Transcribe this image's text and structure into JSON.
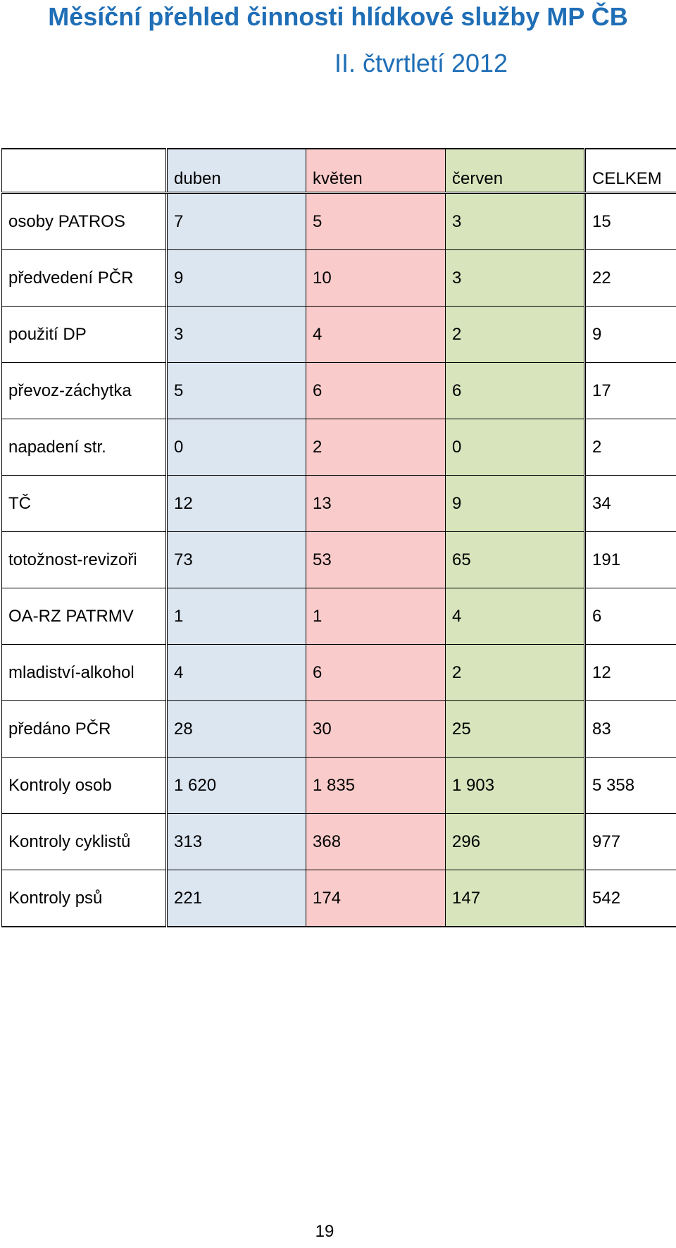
{
  "header": {
    "title_line1": "Měsíční přehled činnosti hlídkové služby MP ČB",
    "title_line2": "II. čtvrtletí 2012"
  },
  "table": {
    "columns": [
      "",
      "duben",
      "květen",
      "červen",
      "CELKEM"
    ],
    "colors": {
      "duben": "#dce6f1",
      "květen": "#f9cbca",
      "červen": "#d8e4bc"
    },
    "rows": [
      {
        "label": "osoby PATROS",
        "duben": "7",
        "kveten": "5",
        "cerven": "3",
        "celkem": "15"
      },
      {
        "label": "předvedení PČR",
        "duben": "9",
        "kveten": "10",
        "cerven": "3",
        "celkem": "22"
      },
      {
        "label": "použití DP",
        "duben": "3",
        "kveten": "4",
        "cerven": "2",
        "celkem": "9"
      },
      {
        "label": "převoz-záchytka",
        "duben": "5",
        "kveten": "6",
        "cerven": "6",
        "celkem": "17"
      },
      {
        "label": "napadení str.",
        "duben": "0",
        "kveten": "2",
        "cerven": "0",
        "celkem": "2"
      },
      {
        "label": "TČ",
        "duben": "12",
        "kveten": "13",
        "cerven": "9",
        "celkem": "34"
      },
      {
        "label": "totožnost-revizoři",
        "duben": "73",
        "kveten": "53",
        "cerven": "65",
        "celkem": "191"
      },
      {
        "label": "OA-RZ  PATRMV",
        "duben": "1",
        "kveten": "1",
        "cerven": "4",
        "celkem": "6"
      },
      {
        "label": "mladiství-alkohol",
        "duben": "4",
        "kveten": "6",
        "cerven": "2",
        "celkem": "12"
      },
      {
        "label": "předáno PČR",
        "duben": "28",
        "kveten": "30",
        "cerven": "25",
        "celkem": "83"
      },
      {
        "label": "Kontroly osob",
        "duben": "1 620",
        "kveten": "1 835",
        "cerven": "1 903",
        "celkem": "5 358"
      },
      {
        "label": "Kontroly cyklistů",
        "duben": "313",
        "kveten": "368",
        "cerven": "296",
        "celkem": "977"
      },
      {
        "label": "Kontroly psů",
        "duben": "221",
        "kveten": "174",
        "cerven": "147",
        "celkem": "542"
      }
    ]
  },
  "footer": {
    "page_number": "19"
  }
}
